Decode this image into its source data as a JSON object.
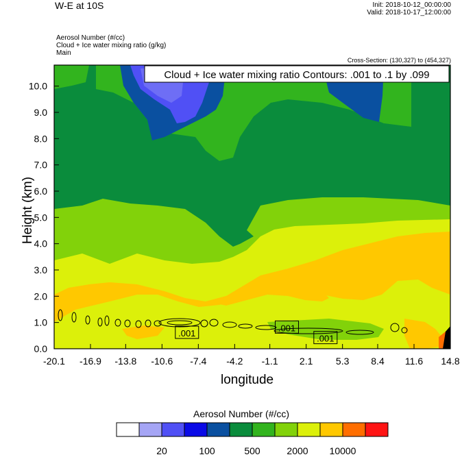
{
  "header": {
    "title": "W-E at 10S",
    "init": "Init: 2018-10-12_00:00:00",
    "valid": "Valid: 2018-10-17_12:00:00",
    "field1": "Aerosol Number   (#/cc)",
    "field2": "Cloud + Ice water mixing ratio   (g/kg)",
    "field3": "Main",
    "cross_section": "Cross-Section: (130,327) to (454,327)"
  },
  "contour_label": "Cloud + Ice water mixing ratio Contours: .001 to .1 by .099",
  "colors": {
    "levels": [
      "#ffffff",
      "#a5a5f5",
      "#5050f5",
      "#0a0ae6",
      "#0a50a0",
      "#0a8c3c",
      "#32b41e",
      "#82d20a",
      "#dcf00a",
      "#ffc800",
      "#ff6e00",
      "#ff1414"
    ]
  },
  "chart_data": {
    "type": "heatmap",
    "title": "Cloud + Ice water mixing ratio Contours: .001 to .1 by .099",
    "xlabel": "longitude",
    "ylabel": "Height (km)",
    "xlim": [
      -20.1,
      14.8
    ],
    "ylim": [
      0.0,
      10.8
    ],
    "x_ticks": [
      "-20.1",
      "-16.9",
      "-13.8",
      "-10.6",
      "-7.4",
      "-4.2",
      "-1.1",
      "2.1",
      "5.3",
      "8.4",
      "11.6",
      "14.8"
    ],
    "y_ticks": [
      "0.0",
      "1.0",
      "2.0",
      "3.0",
      "4.0",
      "5.0",
      "6.0",
      "7.0",
      "8.0",
      "9.0",
      "10.0"
    ],
    "contour_labels": [
      {
        "text": ".001",
        "lon": -8.4,
        "height": 0.6
      },
      {
        "text": ".001",
        "lon": 0.4,
        "height": 0.8
      },
      {
        "text": ".001",
        "lon": 3.8,
        "height": 0.4
      }
    ],
    "colorbar": {
      "title": "Aerosol Number  (#/cc)",
      "tick_labels": [
        "20",
        "100",
        "500",
        "2000",
        "10000"
      ]
    }
  }
}
